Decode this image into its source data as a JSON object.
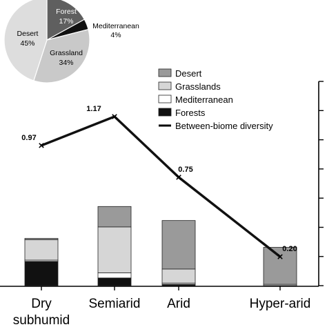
{
  "chart_data": [
    {
      "type": "pie",
      "slices": [
        {
          "label": "Forest",
          "value": 17,
          "display": "17%",
          "color": "#5f5f5f",
          "text_color": "#ffffff"
        },
        {
          "label": "Mediterranean",
          "value": 4,
          "display": "4%",
          "color": "#111111",
          "text_color": "#000000"
        },
        {
          "label": "Grassland",
          "value": 34,
          "display": "34%",
          "color": "#c9c9c9",
          "text_color": "#000000"
        },
        {
          "label": "Desert",
          "value": 45,
          "display": "45%",
          "color": "#dddddd",
          "text_color": "#000000"
        }
      ]
    },
    {
      "type": "bar",
      "stacked": true,
      "categories": [
        "Dry\nsubhumid",
        "Semiarid",
        "Arid",
        "Hyper-arid"
      ],
      "series": [
        {
          "name": "Forests",
          "color": "#111111",
          "values": [
            0.19,
            0.06,
            0.01,
            0.0
          ]
        },
        {
          "name": "Mediterranean",
          "color": "#ffffff",
          "values": [
            0.01,
            0.04,
            0.01,
            0.0
          ]
        },
        {
          "name": "Grasslands",
          "color": "#d6d6d6",
          "values": [
            0.16,
            0.36,
            0.11,
            0.01
          ]
        },
        {
          "name": "Desert",
          "color": "#9a9a9a",
          "values": [
            0.01,
            0.16,
            0.38,
            0.29
          ]
        }
      ],
      "line": {
        "name": "Between-biome diversity",
        "values": [
          0.97,
          1.17,
          0.75,
          0.2
        ],
        "labels": [
          "0.97",
          "1.17",
          "0.75",
          "0.20"
        ]
      },
      "legend_order": [
        "Desert",
        "Grasslands",
        "Mediterranean",
        "Forests",
        "Between-biome diversity"
      ],
      "legend_position": "top-right",
      "ylim": [
        0,
        1.6
      ],
      "grid": false
    }
  ]
}
